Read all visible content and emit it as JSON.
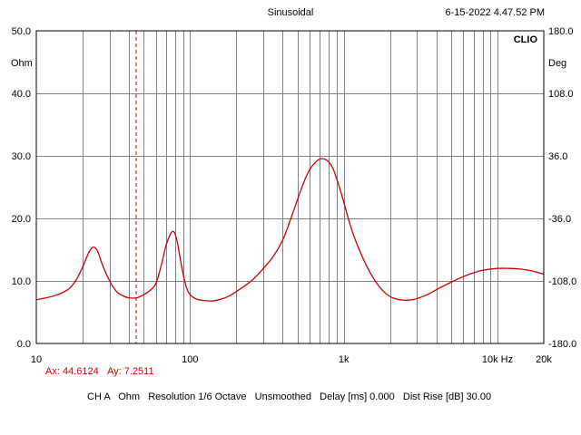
{
  "header": {
    "mode": "Sinusoidal",
    "timestamp": "6-15-2022 4.47.52 PM",
    "brand": "CLIO"
  },
  "axis_units": {
    "left": "Ohm",
    "right": "Deg"
  },
  "cursor": {
    "x_label": "Ax: 44.6124",
    "y_label": "Ay: 7.2511",
    "x": 44.6124,
    "y": 7.2511
  },
  "footer": {
    "status": "CH A   Ohm   Resolution 1/6 Octave   Unsmoothed   Delay [ms] 0.000   Dist Rise [dB] 30.00"
  },
  "colors": {
    "trace": "#cc0000",
    "grid": "#808080",
    "frame": "#000000"
  },
  "chart_data": {
    "type": "line",
    "title": "Sinusoidal",
    "x_scale": "log",
    "xlim": [
      10,
      20000
    ],
    "ylim": [
      0,
      50
    ],
    "y2lim": [
      -180,
      180
    ],
    "x_ticks": [
      {
        "value": 10,
        "label": "10"
      },
      {
        "value": 100,
        "label": "100"
      },
      {
        "value": 1000,
        "label": "1k"
      },
      {
        "value": 10000,
        "label": "10k Hz"
      },
      {
        "value": 20000,
        "label": "20k"
      }
    ],
    "y_ticks": [
      "0.0",
      "10.0",
      "20.0",
      "30.0",
      "40.0",
      "50.0"
    ],
    "y_tick_values": [
      0,
      10,
      20,
      30,
      40,
      50
    ],
    "y2_ticks": [
      "-180.0",
      "-108.0",
      "-36.0",
      "36.0",
      "108.0",
      "180.0"
    ],
    "y2_tick_values": [
      -180,
      -108,
      -36,
      36,
      108,
      180
    ],
    "grid": true,
    "series": [
      {
        "x": [
          10,
          13,
          16,
          18,
          20,
          22,
          23.5,
          25,
          27,
          30,
          33,
          36,
          40,
          45,
          50,
          55,
          60,
          65,
          70,
          75,
          78,
          80,
          83,
          86,
          90,
          95,
          100,
          110,
          120,
          140,
          160,
          180,
          200,
          250,
          300,
          350,
          400,
          450,
          500,
          550,
          600,
          650,
          700,
          750,
          800,
          850,
          900,
          950,
          1000,
          1100,
          1200,
          1400,
          1600,
          1800,
          2000,
          2200,
          2500,
          2800,
          3000,
          3500,
          4000,
          5000,
          6000,
          7000,
          8000,
          10000,
          12000,
          14000,
          16000,
          18000,
          20000
        ],
        "values": [
          7.0,
          7.6,
          8.6,
          10.0,
          12.2,
          14.6,
          15.4,
          14.8,
          12.5,
          10.0,
          8.4,
          7.7,
          7.3,
          7.3,
          7.8,
          8.5,
          9.6,
          12.5,
          15.8,
          17.6,
          17.9,
          17.5,
          16.0,
          13.8,
          11.2,
          8.9,
          7.8,
          7.1,
          6.9,
          6.8,
          7.1,
          7.6,
          8.3,
          10.0,
          12.0,
          14.0,
          16.5,
          19.8,
          23.0,
          25.8,
          27.8,
          28.9,
          29.5,
          29.5,
          29.0,
          28.0,
          26.3,
          24.5,
          22.6,
          19.0,
          16.3,
          12.5,
          10.0,
          8.4,
          7.5,
          7.1,
          6.9,
          7.0,
          7.2,
          7.8,
          8.6,
          9.8,
          10.7,
          11.3,
          11.7,
          12.0,
          12.0,
          11.9,
          11.7,
          11.4,
          11.1
        ]
      }
    ]
  }
}
